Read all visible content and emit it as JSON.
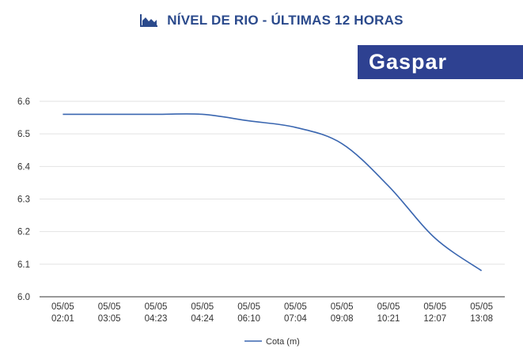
{
  "header": {
    "title": "NÍVEL DE RIO - ÚLTIMAS 12 HORAS",
    "icon": "area-chart-icon",
    "accent_color": "#2b4a8c"
  },
  "station": {
    "name": "Gaspar",
    "background_color": "#2e4191"
  },
  "chart_data": {
    "type": "line",
    "x": [
      [
        "05/05",
        "02:01"
      ],
      [
        "05/05",
        "03:05"
      ],
      [
        "05/05",
        "04:23"
      ],
      [
        "05/05",
        "04:24"
      ],
      [
        "05/05",
        "06:10"
      ],
      [
        "05/05",
        "07:04"
      ],
      [
        "05/05",
        "09:08"
      ],
      [
        "05/05",
        "10:21"
      ],
      [
        "05/05",
        "12:07"
      ],
      [
        "05/05",
        "13:08"
      ]
    ],
    "series": [
      {
        "name": "Cota (m)",
        "color": "#3a66b0",
        "values": [
          6.56,
          6.56,
          6.56,
          6.56,
          6.54,
          6.52,
          6.47,
          6.34,
          6.18,
          6.08
        ]
      }
    ],
    "yticks": [
      "6.0",
      "6.1",
      "6.2",
      "6.3",
      "6.4",
      "6.5",
      "6.6"
    ],
    "ylim": [
      6.0,
      6.6
    ],
    "grid": true,
    "legend": "bottom"
  }
}
